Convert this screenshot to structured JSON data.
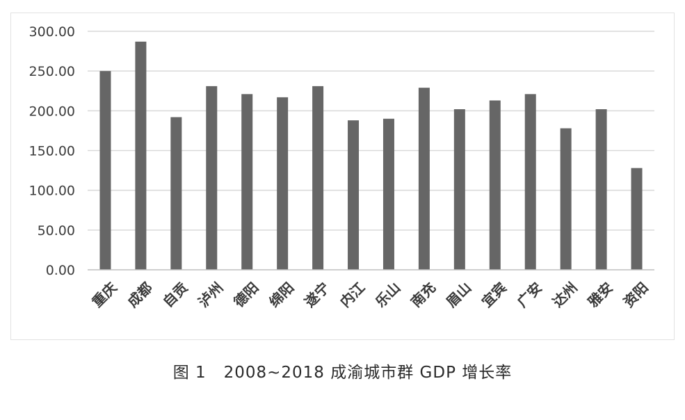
{
  "caption": "图 1   2008~2018 成渝城市群 GDP 增长率",
  "colors": {
    "bar": "#666666",
    "grid": "#d9d9d9",
    "axis": "#bfbfbf",
    "text": "#3a3a3a"
  },
  "chart_data": {
    "type": "bar",
    "title": "",
    "xlabel": "",
    "ylabel": "",
    "ylim": [
      0,
      300
    ],
    "yticks": [
      "0.00",
      "50.00",
      "100.00",
      "150.00",
      "200.00",
      "250.00",
      "300.00"
    ],
    "grid": true,
    "legend": "none",
    "categories": [
      "重庆",
      "成都",
      "自贡",
      "泸州",
      "德阳",
      "绵阳",
      "遂宁",
      "内江",
      "乐山",
      "南充",
      "眉山",
      "宜宾",
      "广安",
      "达州",
      "雅安",
      "资阳"
    ],
    "values": [
      250,
      287,
      192,
      231,
      221,
      217,
      231,
      188,
      190,
      229,
      202,
      213,
      221,
      178,
      202,
      128
    ]
  }
}
